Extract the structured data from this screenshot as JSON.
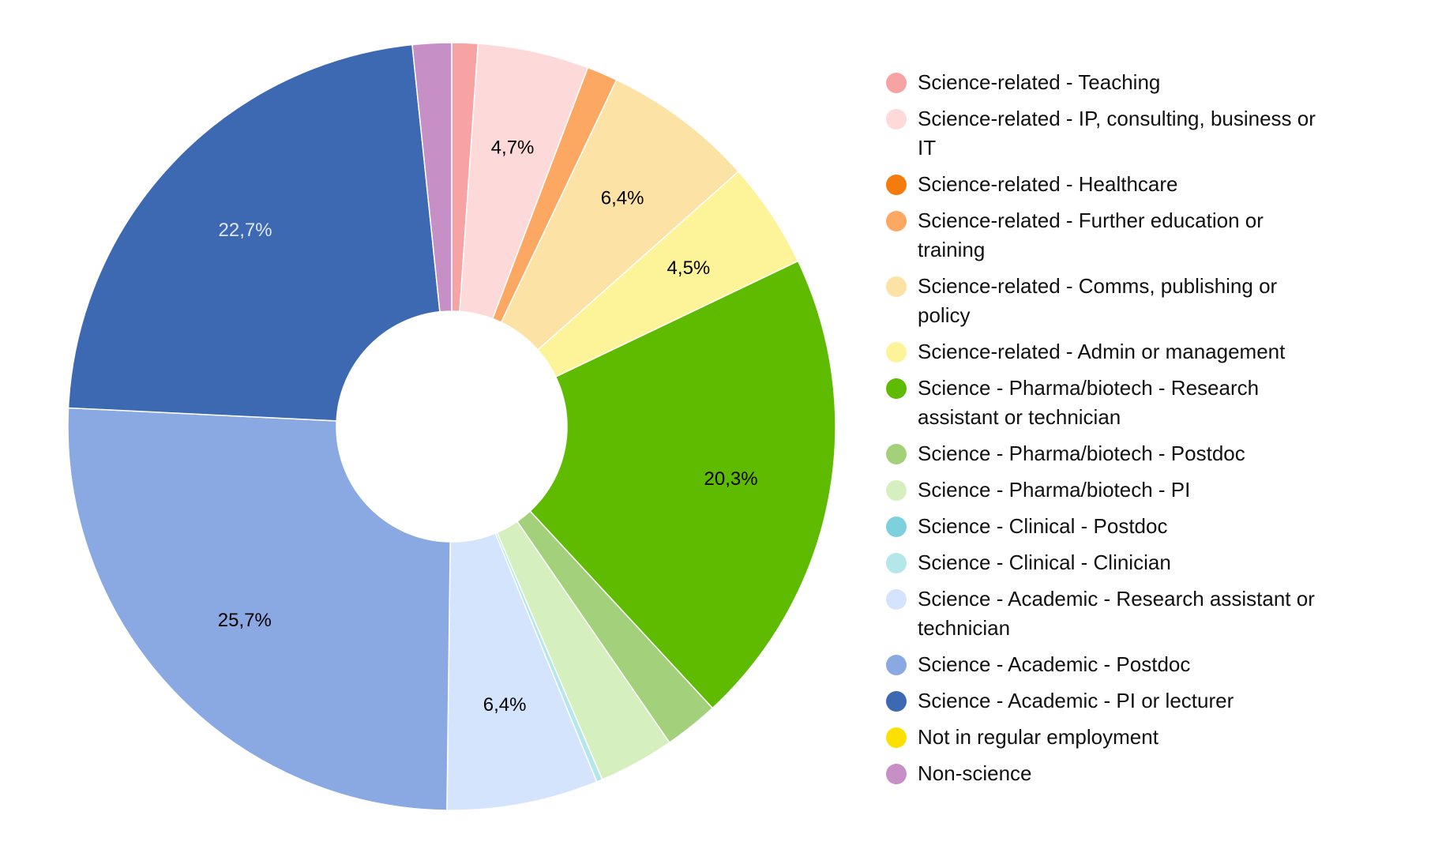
{
  "chart_data": {
    "type": "pie",
    "variant": "donut",
    "title": "",
    "legend_position": "right",
    "slices": [
      {
        "label": "Science-related - Teaching",
        "value": 1.1,
        "color": "#f8a3a3",
        "data_label": "",
        "label_color": "#000000"
      },
      {
        "label": "Science-related - IP, consulting, business or IT",
        "value": 4.7,
        "color": "#fdd9d9",
        "data_label": "4,7%",
        "label_color": "#000000"
      },
      {
        "label": "Science-related - Healthcare",
        "value": 0.0,
        "color": "#f47b0c",
        "data_label": "",
        "label_color": "#000000"
      },
      {
        "label": "Science-related - Further education or training",
        "value": 1.3,
        "color": "#fda862",
        "data_label": "",
        "label_color": "#000000"
      },
      {
        "label": "Science-related - Comms, publishing or policy",
        "value": 6.4,
        "color": "#fde2a5",
        "data_label": "6,4%",
        "label_color": "#000000"
      },
      {
        "label": "Science-related - Admin or management",
        "value": 4.5,
        "color": "#fdf49a",
        "data_label": "4,5%",
        "label_color": "#000000"
      },
      {
        "label": "Science - Pharma/biotech - Research assistant or technician",
        "value": 20.3,
        "color": "#5fbb00",
        "data_label": "20,3%",
        "label_color": "#000000"
      },
      {
        "label": "Science - Pharma/biotech - Postdoc",
        "value": 2.3,
        "color": "#a3d17b",
        "data_label": "",
        "label_color": "#000000"
      },
      {
        "label": "Science - Pharma/biotech - PI",
        "value": 3.2,
        "color": "#d5f0be",
        "data_label": "",
        "label_color": "#000000"
      },
      {
        "label": "Science - Clinical - Postdoc",
        "value": 0.0,
        "color": "#7dd1dc",
        "data_label": "",
        "label_color": "#000000"
      },
      {
        "label": "Science - Clinical - Clinician",
        "value": 0.25,
        "color": "#b4e6ea",
        "data_label": "",
        "label_color": "#000000"
      },
      {
        "label": "Science - Academic - Research assistant or technician",
        "value": 6.4,
        "color": "#d5e4fd",
        "data_label": "6,4%",
        "label_color": "#000000"
      },
      {
        "label": "Science - Academic - Postdoc",
        "value": 25.7,
        "color": "#8aa9e2",
        "data_label": "25,7%",
        "label_color": "#000000"
      },
      {
        "label": "Science - Academic - PI or lecturer",
        "value": 22.7,
        "color": "#3d68b2",
        "data_label": "22,7%",
        "label_color": "#dfe6f4"
      },
      {
        "label": "Not in regular employment",
        "value": 0.0,
        "color": "#fce100",
        "data_label": "",
        "label_color": "#000000"
      },
      {
        "label": "Non-science",
        "value": 1.65,
        "color": "#c68fc6",
        "data_label": "",
        "label_color": "#000000"
      }
    ]
  }
}
